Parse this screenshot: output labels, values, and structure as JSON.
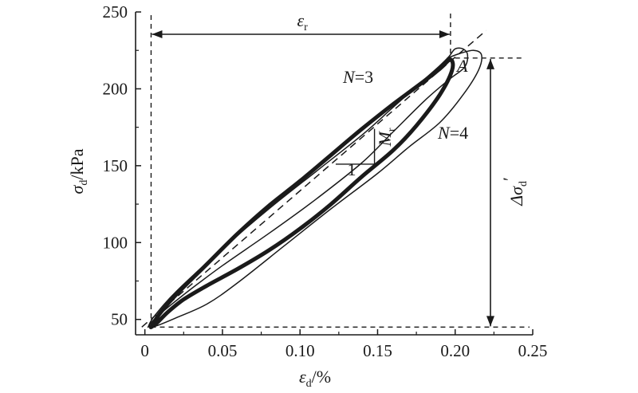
{
  "chart_data": {
    "type": "line",
    "xlabel": {
      "symbol": "ε",
      "subscript": "d",
      "unit": "/%"
    },
    "ylabel": {
      "symbol": "σ",
      "subscript": "d",
      "unit": "/kPa"
    },
    "xlim": [
      -0.006,
      0.25
    ],
    "ylim": [
      40,
      250
    ],
    "x_ticks": [
      0,
      0.05,
      0.1,
      0.15,
      0.2,
      0.25
    ],
    "x_tick_labels": [
      "0",
      "0.05",
      "0.10",
      "0.15",
      "0.20",
      "0.25"
    ],
    "y_ticks": [
      50,
      100,
      150,
      200,
      250
    ],
    "y_tick_labels": [
      "50",
      "100",
      "150",
      "200",
      "250"
    ],
    "series": [
      {
        "name": "N=3",
        "style": "thin",
        "points": [
          [
            0.002,
            45
          ],
          [
            0.006,
            52
          ],
          [
            0.02,
            68
          ],
          [
            0.05,
            96
          ],
          [
            0.08,
            122
          ],
          [
            0.11,
            146
          ],
          [
            0.14,
            170
          ],
          [
            0.16,
            188
          ],
          [
            0.18,
            206
          ],
          [
            0.19,
            215
          ],
          [
            0.196,
            221
          ],
          [
            0.2,
            226
          ],
          [
            0.205,
            226
          ],
          [
            0.208,
            222
          ],
          [
            0.206,
            214
          ],
          [
            0.196,
            206
          ],
          [
            0.18,
            192
          ],
          [
            0.16,
            172
          ],
          [
            0.14,
            152
          ],
          [
            0.11,
            128
          ],
          [
            0.08,
            106
          ],
          [
            0.05,
            85
          ],
          [
            0.03,
            70
          ],
          [
            0.015,
            58
          ],
          [
            0.006,
            50
          ],
          [
            0.002,
            45
          ]
        ]
      },
      {
        "name": "N=4",
        "style": "thin",
        "points": [
          [
            0.195,
            220
          ],
          [
            0.203,
            223
          ],
          [
            0.212,
            225
          ],
          [
            0.217,
            222
          ],
          [
            0.215,
            212
          ],
          [
            0.205,
            196
          ],
          [
            0.19,
            178
          ],
          [
            0.17,
            162
          ],
          [
            0.15,
            145
          ],
          [
            0.12,
            122
          ],
          [
            0.09,
            98
          ],
          [
            0.06,
            74
          ],
          [
            0.04,
            60
          ],
          [
            0.02,
            51
          ],
          [
            0.008,
            46
          ],
          [
            0.003,
            45
          ]
        ]
      },
      {
        "name": "",
        "style": "thick",
        "points": [
          [
            0.005,
            46
          ],
          [
            0.009,
            53
          ],
          [
            0.02,
            66
          ],
          [
            0.04,
            86
          ],
          [
            0.06,
            106
          ],
          [
            0.08,
            124
          ],
          [
            0.1,
            140
          ],
          [
            0.12,
            157
          ],
          [
            0.14,
            174
          ],
          [
            0.16,
            190
          ],
          [
            0.18,
            205
          ],
          [
            0.19,
            213
          ],
          [
            0.197,
            219
          ],
          [
            0.198,
            212
          ],
          [
            0.19,
            196
          ],
          [
            0.175,
            176
          ],
          [
            0.16,
            160
          ],
          [
            0.14,
            143
          ],
          [
            0.12,
            125
          ],
          [
            0.1,
            109
          ],
          [
            0.08,
            95
          ],
          [
            0.06,
            83
          ],
          [
            0.04,
            72
          ],
          [
            0.025,
            63
          ],
          [
            0.015,
            55
          ],
          [
            0.008,
            48
          ],
          [
            0.004,
            45
          ],
          [
            0.005,
            46
          ]
        ]
      }
    ],
    "secant_line": {
      "from": [
        -0.002,
        45
      ],
      "to": [
        0.22,
        238
      ]
    },
    "reference_lines": {
      "vertical_x": [
        0.004,
        0.197
      ],
      "upper_y": 220,
      "lower_y": 45
    },
    "modulus_triangle": {
      "x1": 0.123,
      "x2": 0.148,
      "y1": 151,
      "y2": 174
    },
    "annotations": {
      "epsilon_r": {
        "symbol": "ε",
        "subscript": "r"
      },
      "n3": "N=3",
      "n4": "N=4",
      "point_a": "A",
      "modulus": {
        "symbol": "M",
        "subscript": "r"
      },
      "slope_one": "1",
      "delta_sigma": {
        "symbol": "Δσ",
        "subscript": "d",
        "prime": "′"
      }
    }
  }
}
